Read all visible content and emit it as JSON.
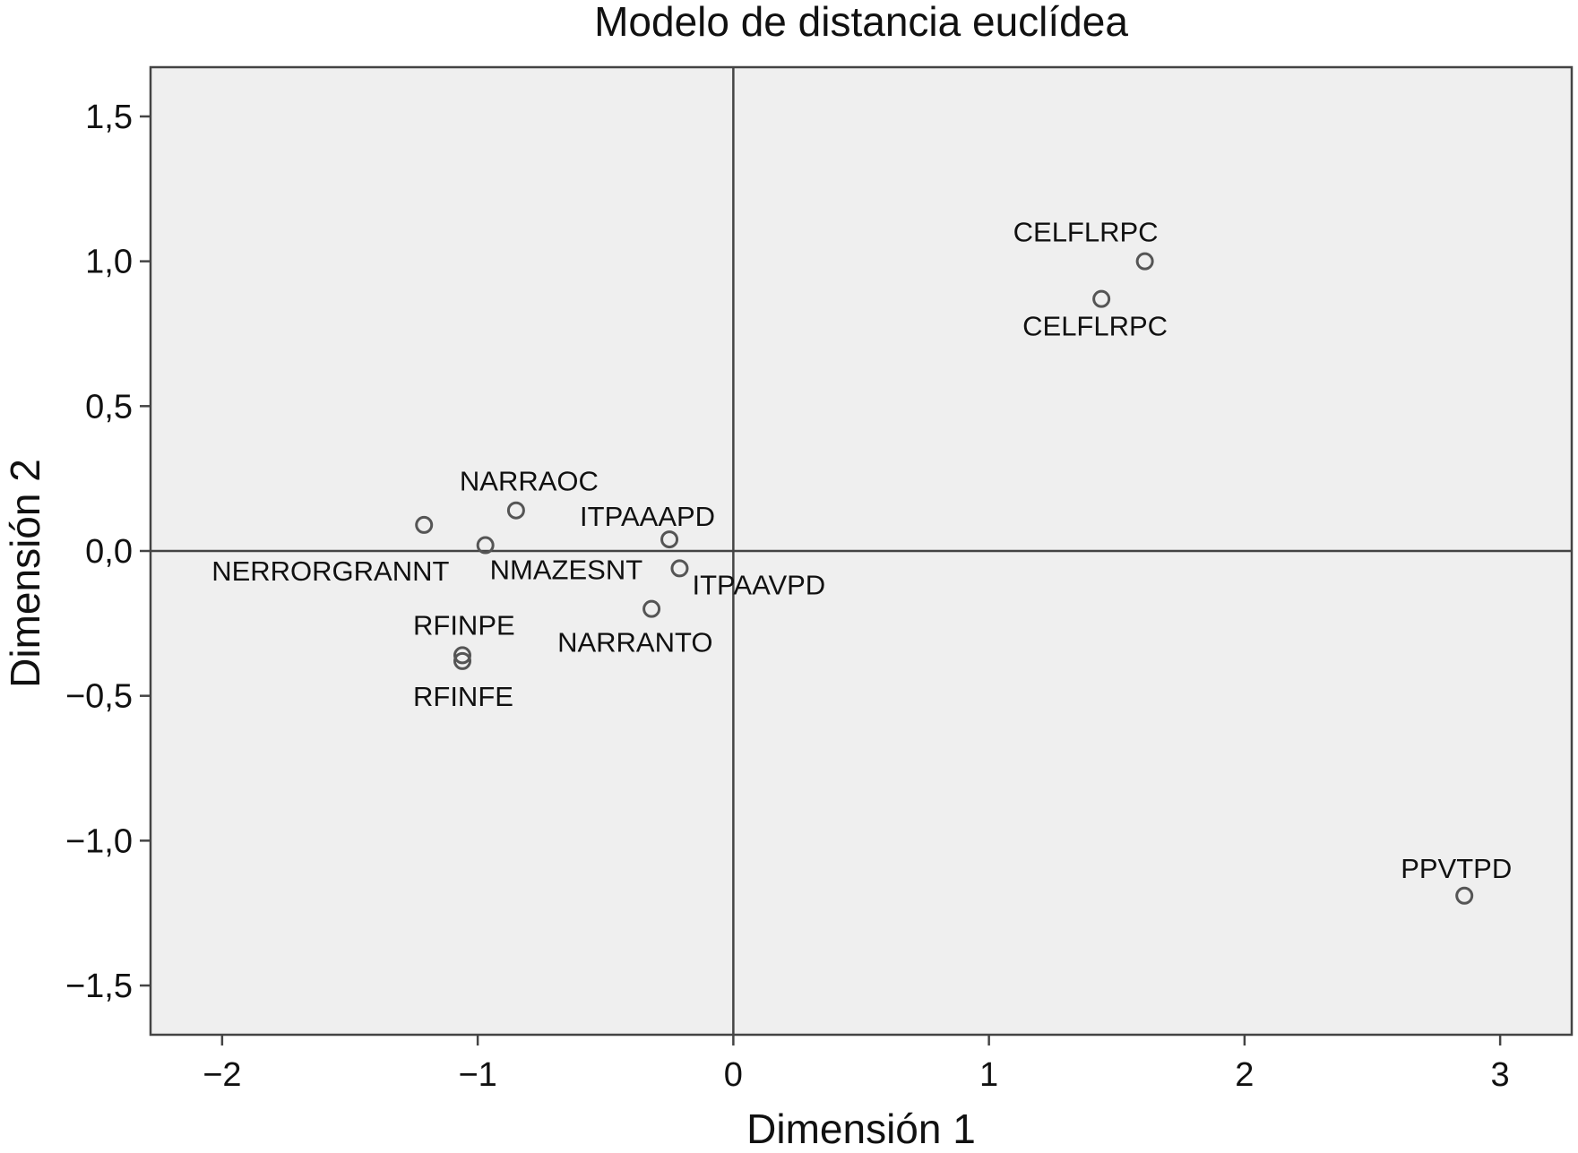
{
  "chart_data": {
    "type": "scatter",
    "title": "Modelo de distancia euclídea",
    "xlabel": "Dimensión 1",
    "ylabel": "Dimensión 2",
    "xlim": [
      -2.28,
      3.28
    ],
    "ylim": [
      -1.67,
      1.67
    ],
    "x_ticks": [
      -2,
      -1,
      0,
      1,
      2,
      3
    ],
    "x_tick_labels": [
      "−2",
      "−1",
      "0",
      "1",
      "2",
      "3"
    ],
    "y_ticks": [
      1.5,
      1.0,
      0.5,
      0.0,
      -0.5,
      -1.0,
      -1.5
    ],
    "y_tick_labels": [
      "1,5",
      "1,0",
      "0,5",
      "0,0",
      "−0,5",
      "−1,0",
      "−1,5"
    ],
    "reference_lines": {
      "x": 0,
      "y": 0
    },
    "grid": false,
    "colors": {
      "plot_background": "#efefef",
      "frame": "#444444",
      "marker_stroke": "#555555",
      "text": "#111111"
    },
    "points": [
      {
        "x": 1.61,
        "y": 1.0,
        "label": "CELFLRPC"
      },
      {
        "x": 1.44,
        "y": 0.87,
        "label": "CELFLRPC"
      },
      {
        "x": -0.85,
        "y": 0.14,
        "label": "NARRAOC"
      },
      {
        "x": -1.21,
        "y": 0.09,
        "label": "NERRORGRANNT"
      },
      {
        "x": -0.97,
        "y": 0.02,
        "label": "NMAZESNT"
      },
      {
        "x": -0.25,
        "y": 0.04,
        "label": "ITPAAAPD"
      },
      {
        "x": -0.21,
        "y": -0.06,
        "label": "ITPAAVPD"
      },
      {
        "x": -0.32,
        "y": -0.2,
        "label": "NARRANTO"
      },
      {
        "x": -1.06,
        "y": -0.36,
        "label": "RFINPE"
      },
      {
        "x": -1.06,
        "y": -0.38,
        "label": "RFINFE"
      },
      {
        "x": 2.86,
        "y": -1.19,
        "label": "PPVTPD"
      }
    ]
  }
}
